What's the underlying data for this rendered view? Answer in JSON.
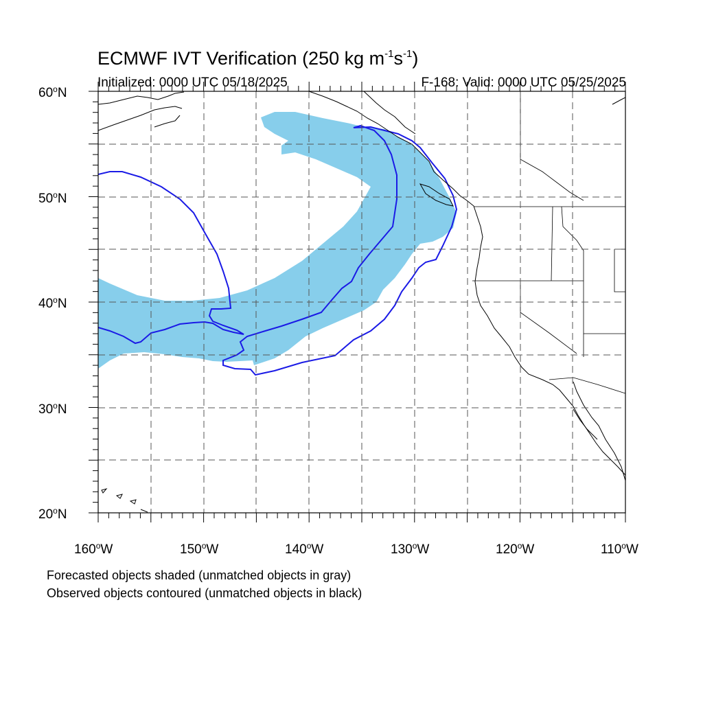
{
  "title": {
    "main": "ECMWF IVT Verification (250 kg m",
    "sup1": "-1",
    "mid": "s",
    "sup2": "-1",
    "end": ")"
  },
  "initialized": "Initialized: 0000 UTC 05/18/2025",
  "valid": "F-168: Valid: 0000 UTC 05/25/2025",
  "lat_labels": [
    {
      "num": "60",
      "deg": "o",
      "hem": "N"
    },
    {
      "num": "50",
      "deg": "o",
      "hem": "N"
    },
    {
      "num": "40",
      "deg": "o",
      "hem": "N"
    },
    {
      "num": "30",
      "deg": "o",
      "hem": "N"
    },
    {
      "num": "20",
      "deg": "o",
      "hem": "N"
    }
  ],
  "lon_labels": [
    {
      "num": "160",
      "deg": "o",
      "hem": "W"
    },
    {
      "num": "150",
      "deg": "o",
      "hem": "W"
    },
    {
      "num": "140",
      "deg": "o",
      "hem": "W"
    },
    {
      "num": "130",
      "deg": "o",
      "hem": "W"
    },
    {
      "num": "120",
      "deg": "o",
      "hem": "W"
    },
    {
      "num": "110",
      "deg": "o",
      "hem": "W"
    }
  ],
  "caption": {
    "line1": "Forecasted objects shaded (unmatched objects in gray)",
    "line2": "Observed objects contoured (unmatched objects in black)"
  },
  "colors": {
    "forecast_fill": "#87ceeb",
    "observed_contour": "#1a1ae6",
    "grid": "#555555",
    "coast": "#000000"
  }
}
